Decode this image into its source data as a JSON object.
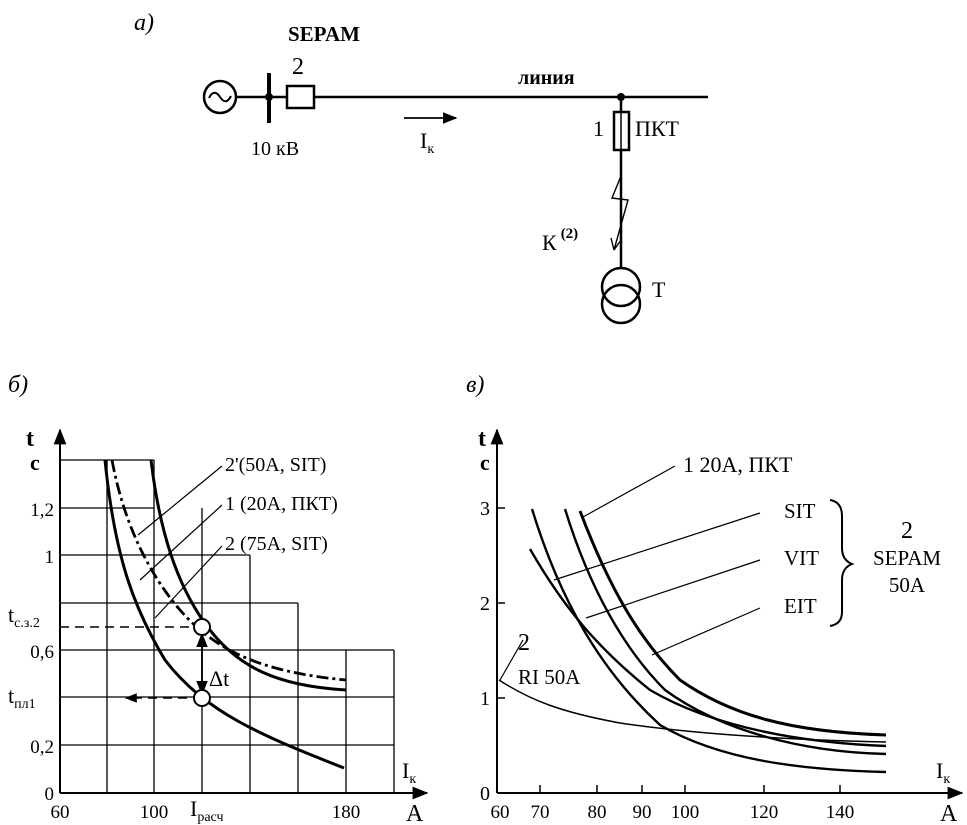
{
  "panel_a": {
    "label": "а)",
    "relay_name": "SEPAM",
    "relay_num": "2",
    "bus_voltage": "10 кВ",
    "line_label": "линия",
    "current_main": "I",
    "current_sub": "к",
    "fuse_num": "1",
    "fuse_name": "ПКТ",
    "fault_main": "К",
    "fault_sup": "(2)",
    "transformer": "Т"
  },
  "panel_b": {
    "label": "б)",
    "y_axis_main": "t",
    "y_axis_unit": "с",
    "x_axis_main": "I",
    "x_axis_sub": "к",
    "x_axis_unit": "А",
    "y_ticks": [
      "0",
      "0,2",
      "0,6",
      "1",
      "1,2"
    ],
    "x_ticks": [
      "60",
      "100",
      "180"
    ],
    "t_cz_main": "t",
    "t_cz_sub": "с.з.2",
    "t_pl_main": "t",
    "t_pl_sub": "пл1",
    "delta_t": "Δt",
    "i_calc_main": "I",
    "i_calc_sub": "расч",
    "legend": [
      "2'(50A, SIT)",
      "1 (20A, ПКТ)",
      "2 (75A, SIT)"
    ]
  },
  "panel_c": {
    "label": "в)",
    "y_axis_main": "t",
    "y_axis_unit": "с",
    "x_axis_main": "I",
    "x_axis_sub": "к",
    "x_axis_unit": "А",
    "y_ticks": [
      "0",
      "1",
      "2",
      "3"
    ],
    "x_ticks": [
      "60",
      "70",
      "80",
      "90",
      "100",
      "120",
      "140"
    ],
    "fuse_label": "1   20A, ПКТ",
    "curve_labels": [
      "SIT",
      "VIT",
      "EIT"
    ],
    "sepam_num": "2",
    "sepam_name": "SEPAM",
    "sepam_current": "50A",
    "ri_num": "2",
    "ri_label": "RI  50A"
  }
}
